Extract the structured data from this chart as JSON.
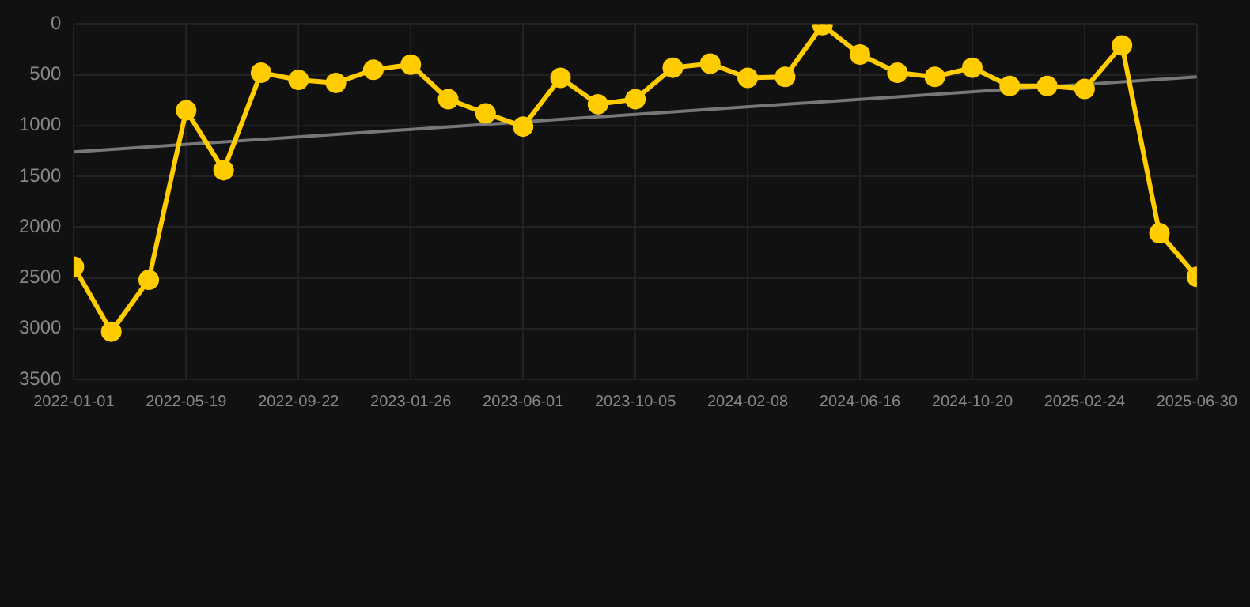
{
  "chart_data": {
    "type": "line",
    "categories": [
      "2022-01-01",
      null,
      null,
      "2022-05-19",
      null,
      null,
      "2022-09-22",
      null,
      null,
      "2023-01-26",
      null,
      null,
      "2023-06-01",
      null,
      null,
      "2023-10-05",
      null,
      null,
      "2024-02-08",
      null,
      null,
      "2024-06-16",
      null,
      null,
      "2024-10-20",
      null,
      null,
      "2025-02-24",
      null,
      null,
      "2025-06-30"
    ],
    "series": [
      {
        "color": "#ffcc00",
        "marker": "circle",
        "values": [
          2390,
          3030,
          2520,
          850,
          1440,
          480,
          550,
          580,
          450,
          400,
          740,
          880,
          1010,
          530,
          790,
          740,
          430,
          390,
          530,
          520,
          10,
          300,
          480,
          520,
          430,
          610,
          610,
          640,
          210,
          2060,
          2490
        ]
      },
      {
        "type": "line",
        "color": "#777777",
        "marker": "none",
        "values": [
          1260,
          null,
          null,
          null,
          null,
          null,
          null,
          null,
          null,
          null,
          null,
          null,
          null,
          null,
          null,
          null,
          null,
          null,
          null,
          null,
          null,
          null,
          null,
          null,
          null,
          null,
          null,
          null,
          null,
          null,
          520
        ]
      }
    ],
    "ylim": [
      3500,
      0
    ],
    "yticks": [
      0,
      500,
      1000,
      1500,
      2000,
      2500,
      3000,
      3500
    ],
    "grid": true,
    "legend": false
  }
}
